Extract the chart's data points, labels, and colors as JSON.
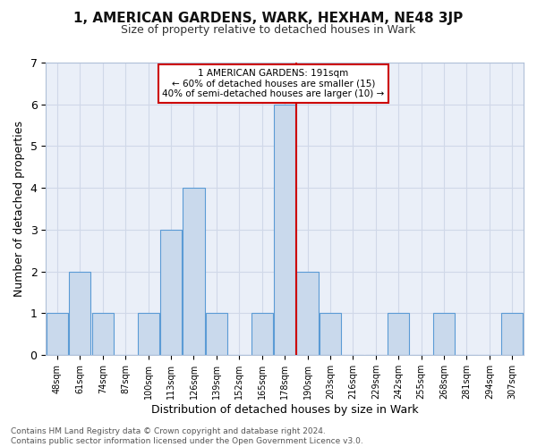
{
  "title": "1, AMERICAN GARDENS, WARK, HEXHAM, NE48 3JP",
  "subtitle": "Size of property relative to detached houses in Wark",
  "xlabel": "Distribution of detached houses by size in Wark",
  "ylabel": "Number of detached properties",
  "bin_labels": [
    "48sqm",
    "61sqm",
    "74sqm",
    "87sqm",
    "100sqm",
    "113sqm",
    "126sqm",
    "139sqm",
    "152sqm",
    "165sqm",
    "178sqm",
    "190sqm",
    "203sqm",
    "216sqm",
    "229sqm",
    "242sqm",
    "255sqm",
    "268sqm",
    "281sqm",
    "294sqm",
    "307sqm"
  ],
  "bar_heights": [
    1,
    2,
    1,
    0,
    1,
    3,
    4,
    1,
    0,
    1,
    6,
    2,
    1,
    0,
    0,
    1,
    0,
    1,
    0,
    0,
    1
  ],
  "bar_color": "#c9d9ec",
  "bar_edgecolor": "#5b9bd5",
  "red_line_x": 10.5,
  "ylim": [
    0,
    7
  ],
  "yticks": [
    0,
    1,
    2,
    3,
    4,
    5,
    6,
    7
  ],
  "annotation_text": "1 AMERICAN GARDENS: 191sqm\n← 60% of detached houses are smaller (15)\n40% of semi-detached houses are larger (10) →",
  "annotation_box_facecolor": "#ffffff",
  "annotation_box_edgecolor": "#cc0000",
  "footer_line1": "Contains HM Land Registry data © Crown copyright and database right 2024.",
  "footer_line2": "Contains public sector information licensed under the Open Government Licence v3.0.",
  "grid_color": "#d0d8e8",
  "bg_color": "#eaeff8",
  "title_fontsize": 11,
  "subtitle_fontsize": 9,
  "ylabel_fontsize": 9,
  "xlabel_fontsize": 9,
  "tick_fontsize": 7,
  "footer_fontsize": 6.5
}
